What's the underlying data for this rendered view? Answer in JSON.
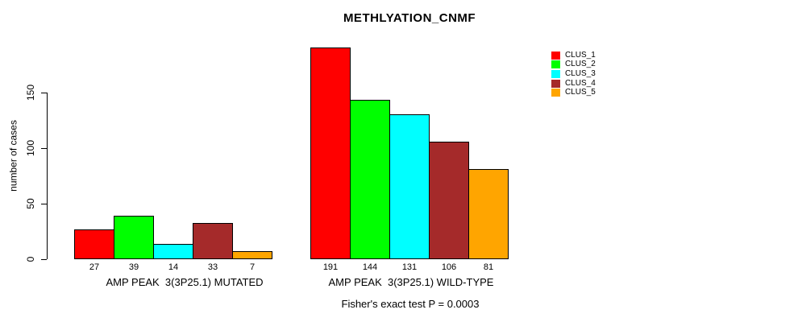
{
  "chart_data": {
    "type": "bar",
    "title": "METHLYATION_CNMF",
    "ylabel": "number of cases",
    "annotation": "Fisher's exact test P = 0.0003",
    "yticks": [
      0,
      50,
      100,
      150
    ],
    "ylim": [
      0,
      191
    ],
    "grid": false,
    "legend": {
      "position": "right",
      "entries": [
        {
          "label": "CLUS_1",
          "color": "#ff0000"
        },
        {
          "label": "CLUS_2",
          "color": "#00ff00"
        },
        {
          "label": "CLUS_3",
          "color": "#00ffff"
        },
        {
          "label": "CLUS_4",
          "color": "#a52a2a"
        },
        {
          "label": "CLUS_5",
          "color": "#ffa500"
        }
      ]
    },
    "series_colors": [
      "#ff0000",
      "#00ff00",
      "#00ffff",
      "#a52a2a",
      "#ffa500"
    ],
    "groups": [
      {
        "label": "AMP PEAK  3(3P25.1) MUTATED",
        "values": [
          27,
          39,
          14,
          33,
          7
        ],
        "value_labels": [
          "27",
          "39",
          "14",
          "33",
          "7"
        ]
      },
      {
        "label": "AMP PEAK  3(3P25.1) WILD-TYPE",
        "values": [
          191,
          144,
          131,
          106,
          81
        ],
        "value_labels": [
          "191",
          "144",
          "131",
          "106",
          "81"
        ]
      }
    ]
  }
}
